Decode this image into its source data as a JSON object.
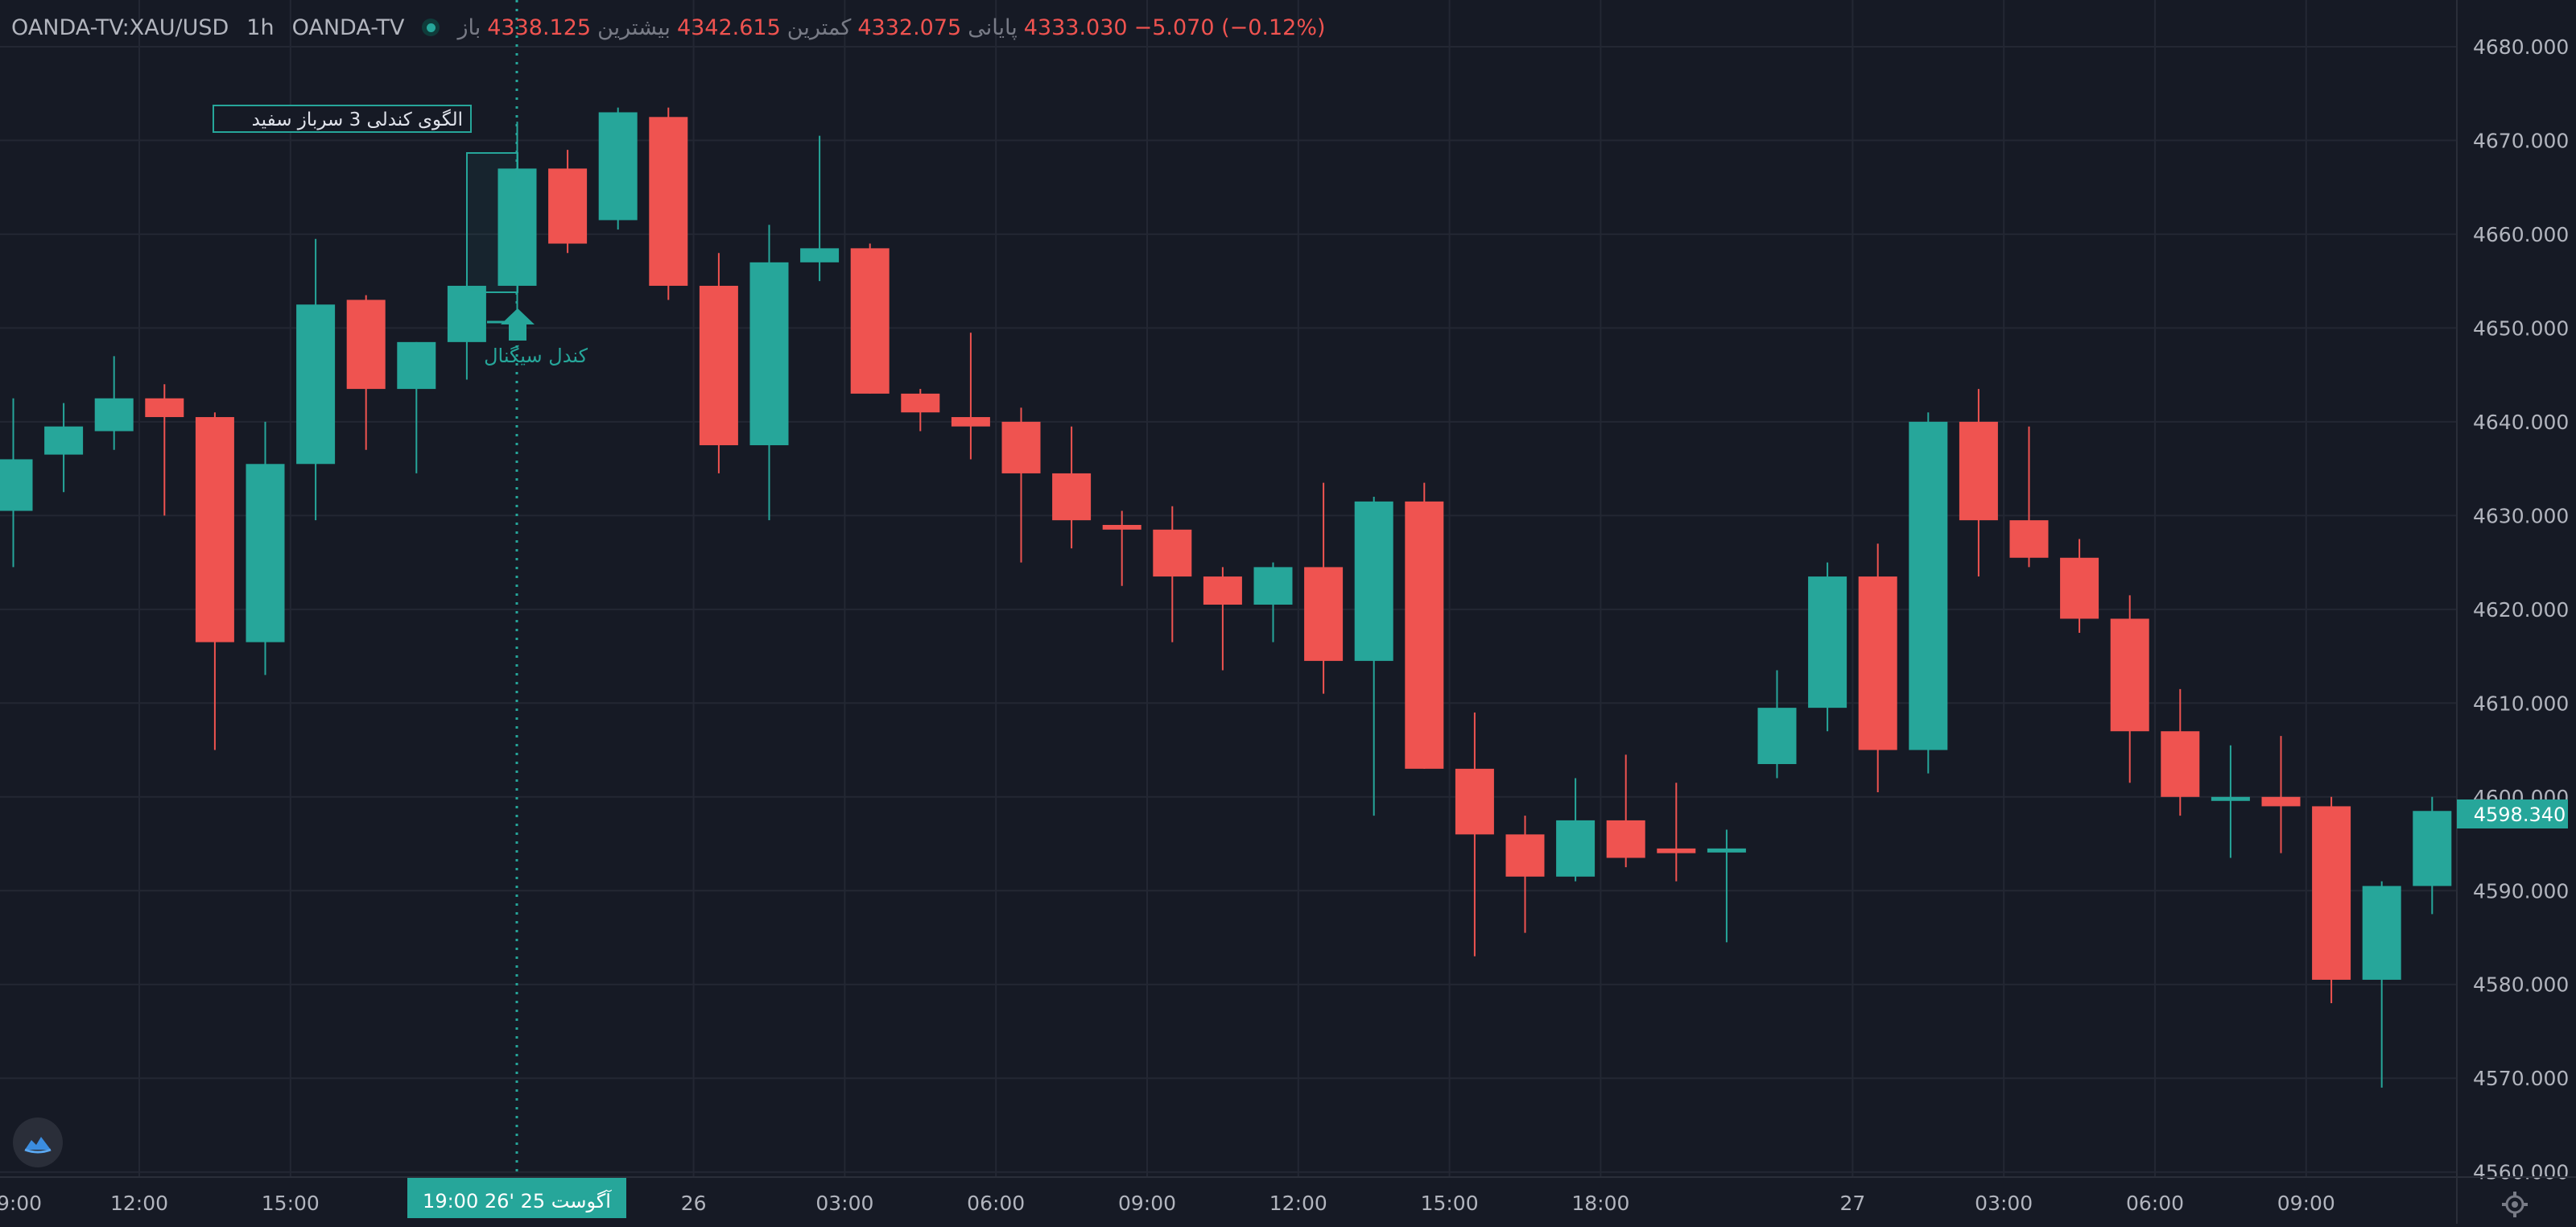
{
  "header": {
    "symbol": "OANDA-TV:XAU/USD",
    "timeframe": "1h",
    "source": "OANDA-TV",
    "open_label": "باز",
    "open_value": "4338.125",
    "high_label": "بیشترین",
    "high_value": "4342.615",
    "low_label": "کمترین",
    "low_value": "4332.075",
    "close_label": "پایانی",
    "close_value": "4333.030",
    "change": "−5.070 (−0.12%)"
  },
  "colors": {
    "background": "#161a25",
    "up": "#26a69a",
    "down": "#ef5350",
    "grid": "#232733",
    "text": "#b2b5be"
  },
  "icons": {
    "logo": "cloud-logo-icon",
    "settings": "gear-icon",
    "status": "status-dot-icon"
  },
  "annotations": {
    "pattern_label": "الگوی کندلی 3 سرباز سفید",
    "signal_label": "کندل سیگنال"
  },
  "crosshair": {
    "time_label": "19:00  26' آگوست 25"
  },
  "current_price": "4598.340",
  "chart_data": {
    "type": "candlestick",
    "title": "",
    "ylim": [
      4558,
      4683
    ],
    "y_ticks": [
      "4560.000",
      "4570.000",
      "4580.000",
      "4590.000",
      "4600.000",
      "4610.000",
      "4620.000",
      "4630.000",
      "4640.000",
      "4650.000",
      "4660.000",
      "4670.000",
      "4680.000"
    ],
    "x_ticks": [
      "9:00",
      "12:00",
      "15:00",
      "26",
      "03:00",
      "06:00",
      "09:00",
      "12:00",
      "15:00",
      "18:00",
      "27",
      "03:00",
      "06:00",
      "09:00"
    ],
    "grid": true,
    "candles": [
      {
        "o": 4630.5,
        "h": 4642.5,
        "l": 4624.5,
        "c": 4636.0
      },
      {
        "o": 4636.5,
        "h": 4642.0,
        "l": 4632.5,
        "c": 4639.5
      },
      {
        "o": 4639.0,
        "h": 4647.0,
        "l": 4637.0,
        "c": 4642.5
      },
      {
        "o": 4642.5,
        "h": 4644.0,
        "l": 4630.0,
        "c": 4640.5
      },
      {
        "o": 4640.5,
        "h": 4641.0,
        "l": 4605.0,
        "c": 4616.5
      },
      {
        "o": 4616.5,
        "h": 4640.0,
        "l": 4613.0,
        "c": 4635.5
      },
      {
        "o": 4635.5,
        "h": 4659.5,
        "l": 4629.5,
        "c": 4652.5
      },
      {
        "o": 4653.0,
        "h": 4653.5,
        "l": 4637.0,
        "c": 4643.5
      },
      {
        "o": 4643.5,
        "h": 4648.5,
        "l": 4634.5,
        "c": 4648.5
      },
      {
        "o": 4648.5,
        "h": 4655.0,
        "l": 4644.5,
        "c": 4654.5
      },
      {
        "o": 4654.5,
        "h": 4672.0,
        "l": 4650.5,
        "c": 4667.0
      },
      {
        "o": 4667.0,
        "h": 4669.0,
        "l": 4658.0,
        "c": 4659.0
      },
      {
        "o": 4661.5,
        "h": 4673.5,
        "l": 4660.5,
        "c": 4673.0
      },
      {
        "o": 4672.5,
        "h": 4673.5,
        "l": 4653.0,
        "c": 4654.5
      },
      {
        "o": 4654.5,
        "h": 4658.0,
        "l": 4634.5,
        "c": 4637.5
      },
      {
        "o": 4637.5,
        "h": 4661.0,
        "l": 4629.5,
        "c": 4657.0
      },
      {
        "o": 4657.0,
        "h": 4670.5,
        "l": 4655.0,
        "c": 4658.5
      },
      {
        "o": 4658.5,
        "h": 4659.0,
        "l": 4643.0,
        "c": 4643.0
      },
      {
        "o": 4643.0,
        "h": 4643.5,
        "l": 4639.0,
        "c": 4641.0
      },
      {
        "o": 4640.5,
        "h": 4649.5,
        "l": 4636.0,
        "c": 4639.5
      },
      {
        "o": 4640.0,
        "h": 4641.5,
        "l": 4625.0,
        "c": 4634.5
      },
      {
        "o": 4634.5,
        "h": 4639.5,
        "l": 4626.5,
        "c": 4629.5
      },
      {
        "o": 4629.0,
        "h": 4630.5,
        "l": 4622.5,
        "c": 4628.5
      },
      {
        "o": 4628.5,
        "h": 4631.0,
        "l": 4616.5,
        "c": 4623.5
      },
      {
        "o": 4623.5,
        "h": 4624.5,
        "l": 4613.5,
        "c": 4620.5
      },
      {
        "o": 4620.5,
        "h": 4625.0,
        "l": 4616.5,
        "c": 4624.5
      },
      {
        "o": 4624.5,
        "h": 4633.5,
        "l": 4611.0,
        "c": 4614.5
      },
      {
        "o": 4614.5,
        "h": 4632.0,
        "l": 4598.0,
        "c": 4631.5
      },
      {
        "o": 4631.5,
        "h": 4633.5,
        "l": 4603.0,
        "c": 4603.0
      },
      {
        "o": 4603.0,
        "h": 4609.0,
        "l": 4583.0,
        "c": 4596.0
      },
      {
        "o": 4596.0,
        "h": 4598.0,
        "l": 4585.5,
        "c": 4591.5
      },
      {
        "o": 4591.5,
        "h": 4602.0,
        "l": 4591.0,
        "c": 4597.5
      },
      {
        "o": 4597.5,
        "h": 4604.5,
        "l": 4592.5,
        "c": 4593.5
      },
      {
        "o": 4594.5,
        "h": 4601.5,
        "l": 4591.0,
        "c": 4594.0
      },
      {
        "o": 4594.5,
        "h": 4596.5,
        "l": 4584.5,
        "c": 4594.5
      },
      {
        "o": 4603.5,
        "h": 4613.5,
        "l": 4602.0,
        "c": 4609.5
      },
      {
        "o": 4609.5,
        "h": 4625.0,
        "l": 4607.0,
        "c": 4623.5
      },
      {
        "o": 4623.5,
        "h": 4627.0,
        "l": 4600.5,
        "c": 4605.0
      },
      {
        "o": 4605.0,
        "h": 4641.0,
        "l": 4602.5,
        "c": 4640.0
      },
      {
        "o": 4640.0,
        "h": 4643.5,
        "l": 4623.5,
        "c": 4629.5
      },
      {
        "o": 4629.5,
        "h": 4639.5,
        "l": 4624.5,
        "c": 4625.5
      },
      {
        "o": 4625.5,
        "h": 4627.5,
        "l": 4617.5,
        "c": 4619.0
      },
      {
        "o": 4619.0,
        "h": 4621.5,
        "l": 4601.5,
        "c": 4607.0
      },
      {
        "o": 4607.0,
        "h": 4611.5,
        "l": 4598.0,
        "c": 4600.0
      },
      {
        "o": 4600.0,
        "h": 4605.5,
        "l": 4593.5,
        "c": 4600.0
      },
      {
        "o": 4600.0,
        "h": 4606.5,
        "l": 4594.0,
        "c": 4599.0
      },
      {
        "o": 4599.0,
        "h": 4600.0,
        "l": 4578.0,
        "c": 4580.5
      },
      {
        "o": 4580.5,
        "h": 4591.0,
        "l": 4569.0,
        "c": 4590.5
      },
      {
        "o": 4590.5,
        "h": 4600.0,
        "l": 4587.5,
        "c": 4598.5
      }
    ]
  }
}
